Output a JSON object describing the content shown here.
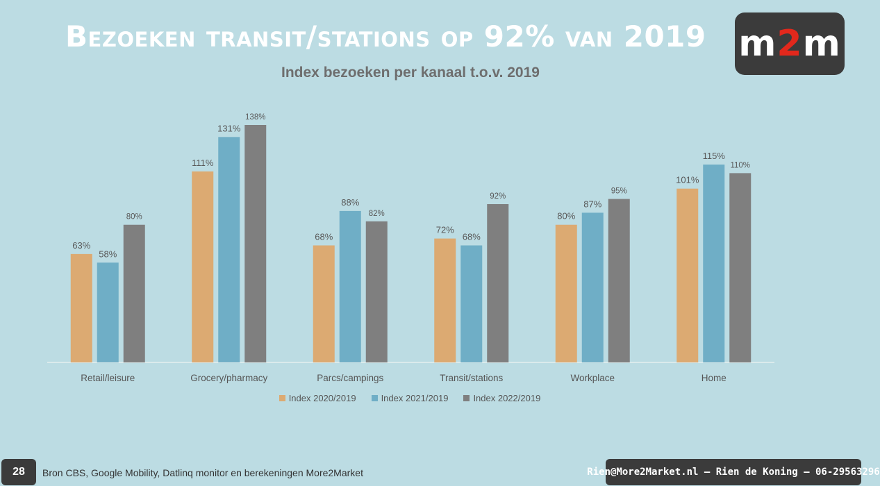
{
  "slide": {
    "title": "Bezoeken transit/stations op 92% van 2019",
    "page_number": "28",
    "source": "Bron CBS, Google Mobility, Datlinq monitor en berekeningen More2Market",
    "contact": "Rien@More2Market.nl – Rien de Koning – 06-29563296"
  },
  "logo": {
    "prefix": "m",
    "highlight": "2",
    "suffix": "m",
    "highlight_color": "#e2281c"
  },
  "chart_data": {
    "type": "bar",
    "title": "Index bezoeken per kanaal t.o.v. 2019",
    "categories": [
      "Retail/leisure",
      "Grocery/pharmacy",
      "Parcs/campings",
      "Transit/stations",
      "Workplace",
      "Home"
    ],
    "series": [
      {
        "name": "Index 2020/2019",
        "color": "#dcaa72",
        "values": [
          63,
          111,
          68,
          72,
          80,
          101
        ]
      },
      {
        "name": "Index 2021/2019",
        "color": "#6faec6",
        "values": [
          58,
          131,
          88,
          68,
          87,
          115
        ]
      },
      {
        "name": "Index 2022/2019",
        "color": "#7f7f7f",
        "values": [
          80,
          138,
          82,
          92,
          95,
          110
        ]
      }
    ],
    "value_suffix": "%",
    "ylim": [
      0,
      140
    ],
    "grid": false,
    "legend_position": "bottom"
  }
}
